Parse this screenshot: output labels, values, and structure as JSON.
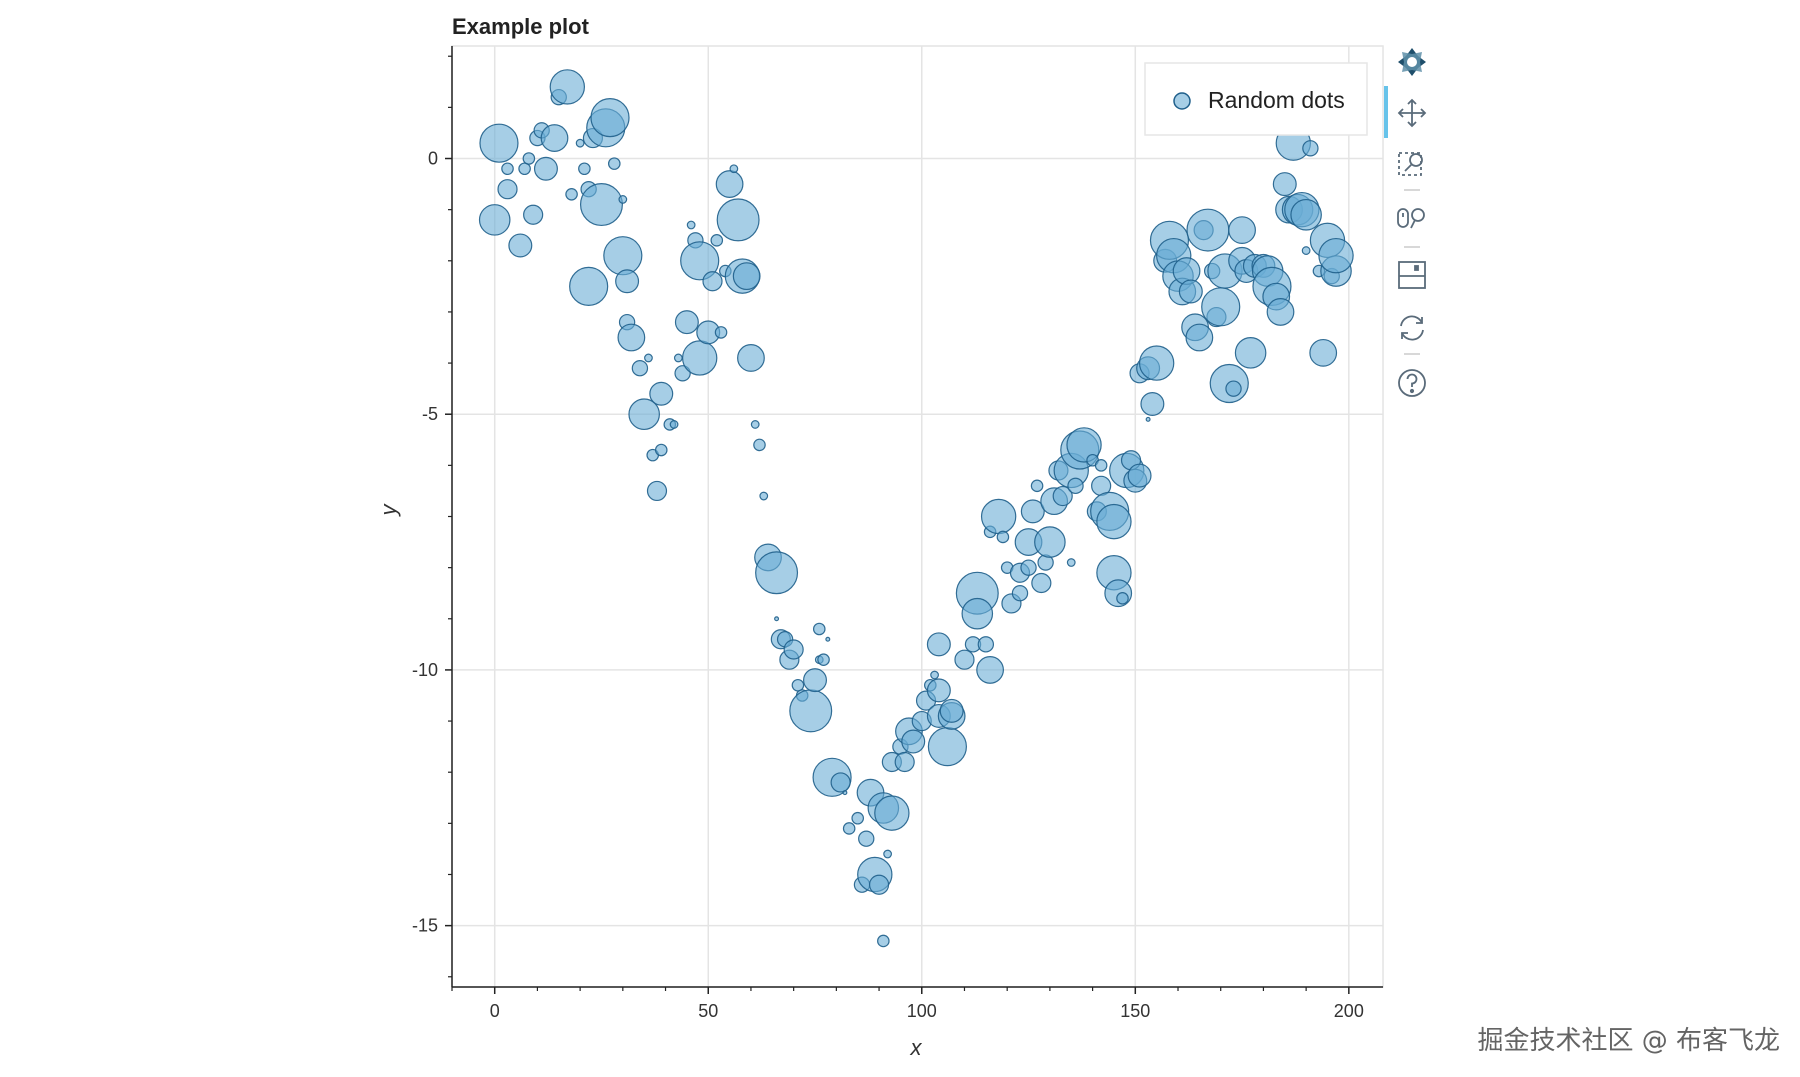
{
  "chart_data": {
    "type": "scatter",
    "title": "Example plot",
    "xlabel": "x",
    "ylabel": "y",
    "xlim": [
      -10,
      208
    ],
    "ylim": [
      -16.2,
      2.2
    ],
    "xticks": [
      0,
      50,
      100,
      150,
      200
    ],
    "yticks": [
      0,
      -5,
      -10,
      -15
    ],
    "xtick_labels": [
      "0",
      "50",
      "100",
      "150",
      "200"
    ],
    "ytick_labels": [
      "0",
      "-5",
      "-10",
      "-15"
    ],
    "grid": true,
    "legend": {
      "position": "top-right",
      "entries": [
        "Random dots"
      ]
    },
    "colors": {
      "fill": "#6baed6",
      "stroke": "#1f5f8b",
      "grid": "#e4e4e4",
      "axis": "#222222",
      "title": "#222222"
    },
    "series": [
      {
        "name": "Random dots",
        "points": [
          [
            1,
            0.3,
            1.0
          ],
          [
            0,
            -1.2,
            0.8
          ],
          [
            3,
            -0.6,
            0.5
          ],
          [
            3,
            -0.2,
            0.3
          ],
          [
            6,
            -1.7,
            0.6
          ],
          [
            7,
            -0.2,
            0.3
          ],
          [
            8,
            0.0,
            0.3
          ],
          [
            9,
            -1.1,
            0.5
          ],
          [
            10,
            0.4,
            0.4
          ],
          [
            11,
            0.55,
            0.4
          ],
          [
            12,
            -0.2,
            0.6
          ],
          [
            14,
            0.4,
            0.7
          ],
          [
            15,
            1.2,
            0.4
          ],
          [
            17,
            1.4,
            0.9
          ],
          [
            18,
            -0.7,
            0.3
          ],
          [
            20,
            0.3,
            0.2
          ],
          [
            21,
            -0.2,
            0.3
          ],
          [
            22,
            -2.5,
            1.0
          ],
          [
            22,
            -0.6,
            0.4
          ],
          [
            23,
            0.4,
            0.5
          ],
          [
            25,
            -0.9,
            1.1
          ],
          [
            26,
            0.6,
            1.0
          ],
          [
            27,
            0.8,
            1.0
          ],
          [
            28,
            -0.1,
            0.3
          ],
          [
            30,
            -0.8,
            0.2
          ],
          [
            30,
            -1.9,
            1.0
          ],
          [
            31,
            -2.4,
            0.6
          ],
          [
            31,
            -3.2,
            0.4
          ],
          [
            32,
            -3.5,
            0.7
          ],
          [
            34,
            -4.1,
            0.4
          ],
          [
            35,
            -5.0,
            0.8
          ],
          [
            36,
            -3.9,
            0.2
          ],
          [
            37,
            -5.8,
            0.3
          ],
          [
            38,
            -6.5,
            0.5
          ],
          [
            39,
            -4.6,
            0.6
          ],
          [
            39,
            -5.7,
            0.3
          ],
          [
            41,
            -5.2,
            0.3
          ],
          [
            42,
            -5.2,
            0.2
          ],
          [
            43,
            -3.9,
            0.2
          ],
          [
            44,
            -4.2,
            0.4
          ],
          [
            45,
            -3.2,
            0.6
          ],
          [
            46,
            -1.3,
            0.2
          ],
          [
            47,
            -1.6,
            0.4
          ],
          [
            48,
            -2.0,
            1.0
          ],
          [
            48,
            -3.9,
            0.9
          ],
          [
            50,
            -3.4,
            0.6
          ],
          [
            51,
            -2.4,
            0.5
          ],
          [
            52,
            -1.6,
            0.3
          ],
          [
            53,
            -3.4,
            0.3
          ],
          [
            54,
            -2.2,
            0.3
          ],
          [
            55,
            -0.5,
            0.7
          ],
          [
            56,
            -0.2,
            0.2
          ],
          [
            57,
            -1.2,
            1.1
          ],
          [
            58,
            -2.3,
            0.9
          ],
          [
            59,
            -2.3,
            0.7
          ],
          [
            60,
            -3.9,
            0.7
          ],
          [
            61,
            -5.2,
            0.2
          ],
          [
            62,
            -5.6,
            0.3
          ],
          [
            63,
            -6.6,
            0.2
          ],
          [
            64,
            -7.8,
            0.7
          ],
          [
            66,
            -8.1,
            1.1
          ],
          [
            66,
            -9.0,
            0.1
          ],
          [
            67,
            -9.4,
            0.5
          ],
          [
            68,
            -9.4,
            0.4
          ],
          [
            69,
            -9.8,
            0.5
          ],
          [
            70,
            -9.6,
            0.5
          ],
          [
            71,
            -10.3,
            0.3
          ],
          [
            72,
            -10.5,
            0.3
          ],
          [
            74,
            -10.8,
            1.1
          ],
          [
            75,
            -10.2,
            0.6
          ],
          [
            76,
            -9.8,
            0.2
          ],
          [
            76,
            -9.2,
            0.3
          ],
          [
            77,
            -9.8,
            0.3
          ],
          [
            78,
            -9.4,
            0.1
          ],
          [
            79,
            -12.1,
            1.0
          ],
          [
            81,
            -12.2,
            0.5
          ],
          [
            82,
            -12.4,
            0.1
          ],
          [
            83,
            -13.1,
            0.3
          ],
          [
            85,
            -12.9,
            0.3
          ],
          [
            86,
            -14.2,
            0.4
          ],
          [
            87,
            -13.3,
            0.4
          ],
          [
            88,
            -12.4,
            0.7
          ],
          [
            89,
            -14.0,
            0.9
          ],
          [
            90,
            -14.2,
            0.5
          ],
          [
            91,
            -12.7,
            0.8
          ],
          [
            91,
            -15.3,
            0.3
          ],
          [
            92,
            -13.6,
            0.2
          ],
          [
            93,
            -11.8,
            0.5
          ],
          [
            93,
            -12.8,
            0.9
          ],
          [
            95,
            -11.5,
            0.4
          ],
          [
            96,
            -11.8,
            0.5
          ],
          [
            97,
            -11.2,
            0.7
          ],
          [
            98,
            -11.4,
            0.6
          ],
          [
            100,
            -11.0,
            0.5
          ],
          [
            101,
            -10.6,
            0.5
          ],
          [
            102,
            -10.3,
            0.3
          ],
          [
            103,
            -10.1,
            0.2
          ],
          [
            104,
            -10.4,
            0.6
          ],
          [
            104,
            -10.9,
            0.6
          ],
          [
            104,
            -9.5,
            0.6
          ],
          [
            106,
            -11.5,
            1.0
          ],
          [
            107,
            -10.9,
            0.7
          ],
          [
            107,
            -10.8,
            0.6
          ],
          [
            110,
            -9.8,
            0.5
          ],
          [
            112,
            -9.5,
            0.4
          ],
          [
            113,
            -8.5,
            1.1
          ],
          [
            113,
            -8.9,
            0.8
          ],
          [
            115,
            -9.5,
            0.4
          ],
          [
            116,
            -7.3,
            0.3
          ],
          [
            116,
            -10.0,
            0.7
          ],
          [
            118,
            -7.0,
            0.9
          ],
          [
            119,
            -7.4,
            0.3
          ],
          [
            120,
            -8.0,
            0.3
          ],
          [
            121,
            -8.7,
            0.5
          ],
          [
            123,
            -8.1,
            0.5
          ],
          [
            123,
            -8.5,
            0.4
          ],
          [
            125,
            -8.0,
            0.4
          ],
          [
            125,
            -7.5,
            0.7
          ],
          [
            126,
            -6.9,
            0.6
          ],
          [
            127,
            -6.4,
            0.3
          ],
          [
            128,
            -8.3,
            0.5
          ],
          [
            129,
            -7.9,
            0.4
          ],
          [
            130,
            -7.5,
            0.8
          ],
          [
            131,
            -6.7,
            0.7
          ],
          [
            132,
            -6.1,
            0.5
          ],
          [
            133,
            -6.6,
            0.5
          ],
          [
            135,
            -6.1,
            0.9
          ],
          [
            135,
            -7.9,
            0.2
          ],
          [
            136,
            -6.4,
            0.4
          ],
          [
            137,
            -5.7,
            1.0
          ],
          [
            138,
            -5.6,
            0.9
          ],
          [
            140,
            -5.9,
            0.3
          ],
          [
            141,
            -6.9,
            0.5
          ],
          [
            142,
            -6.4,
            0.5
          ],
          [
            142,
            -6.0,
            0.3
          ],
          [
            144,
            -6.9,
            1.0
          ],
          [
            145,
            -7.1,
            0.9
          ],
          [
            145,
            -8.1,
            0.9
          ],
          [
            146,
            -8.5,
            0.7
          ],
          [
            147,
            -8.6,
            0.3
          ],
          [
            148,
            -6.1,
            0.9
          ],
          [
            149,
            -5.9,
            0.5
          ],
          [
            150,
            -6.3,
            0.6
          ],
          [
            151,
            -6.2,
            0.6
          ],
          [
            151,
            -4.2,
            0.5
          ],
          [
            153,
            -4.1,
            0.6
          ],
          [
            153,
            -5.1,
            0.1
          ],
          [
            154,
            -4.8,
            0.6
          ],
          [
            155,
            -4.0,
            0.9
          ],
          [
            157,
            -2.0,
            0.6
          ],
          [
            158,
            -1.6,
            1.0
          ],
          [
            159,
            -1.9,
            0.9
          ],
          [
            160,
            -2.3,
            0.8
          ],
          [
            161,
            -2.6,
            0.7
          ],
          [
            162,
            -2.2,
            0.7
          ],
          [
            163,
            -2.6,
            0.6
          ],
          [
            164,
            -3.3,
            0.7
          ],
          [
            165,
            -3.5,
            0.7
          ],
          [
            166,
            -1.4,
            0.5
          ],
          [
            167,
            -1.4,
            1.1
          ],
          [
            168,
            -2.2,
            0.4
          ],
          [
            169,
            -3.1,
            0.5
          ],
          [
            170,
            -2.9,
            1.0
          ],
          [
            171,
            -2.2,
            0.9
          ],
          [
            172,
            -4.4,
            1.0
          ],
          [
            173,
            -4.5,
            0.4
          ],
          [
            175,
            -1.4,
            0.7
          ],
          [
            175,
            -2.0,
            0.7
          ],
          [
            176,
            -2.2,
            0.6
          ],
          [
            177,
            -3.8,
            0.8
          ],
          [
            178,
            -2.1,
            0.6
          ],
          [
            180,
            -2.1,
            0.6
          ],
          [
            181,
            -2.2,
            0.8
          ],
          [
            182,
            -2.5,
            1.0
          ],
          [
            183,
            -2.7,
            0.7
          ],
          [
            184,
            -3.0,
            0.7
          ],
          [
            185,
            -0.5,
            0.6
          ],
          [
            186,
            -1.0,
            0.7
          ],
          [
            187,
            0.3,
            0.9
          ],
          [
            188,
            -1.0,
            0.8
          ],
          [
            189,
            -1.0,
            0.9
          ],
          [
            190,
            -1.1,
            0.8
          ],
          [
            190,
            -1.8,
            0.2
          ],
          [
            191,
            0.2,
            0.4
          ],
          [
            193,
            -2.2,
            0.3
          ],
          [
            194,
            -3.8,
            0.7
          ],
          [
            195,
            -1.6,
            0.9
          ],
          [
            196,
            -2.3,
            0.4
          ],
          [
            197,
            -2.2,
            0.8
          ],
          [
            197,
            -1.9,
            0.9
          ]
        ]
      }
    ]
  },
  "toolbar": {
    "items": [
      {
        "name": "bokeh-logo-icon",
        "label": "Bokeh"
      },
      {
        "name": "pan-icon",
        "label": "Pan"
      },
      {
        "name": "box-zoom-icon",
        "label": "Box Zoom"
      },
      {
        "name": "wheel-zoom-icon",
        "label": "Wheel Zoom"
      },
      {
        "name": "save-icon",
        "label": "Save"
      },
      {
        "name": "reset-icon",
        "label": "Reset"
      },
      {
        "name": "help-icon",
        "label": "Help"
      }
    ]
  },
  "watermark": "掘金技术社区 @ 布客飞龙"
}
